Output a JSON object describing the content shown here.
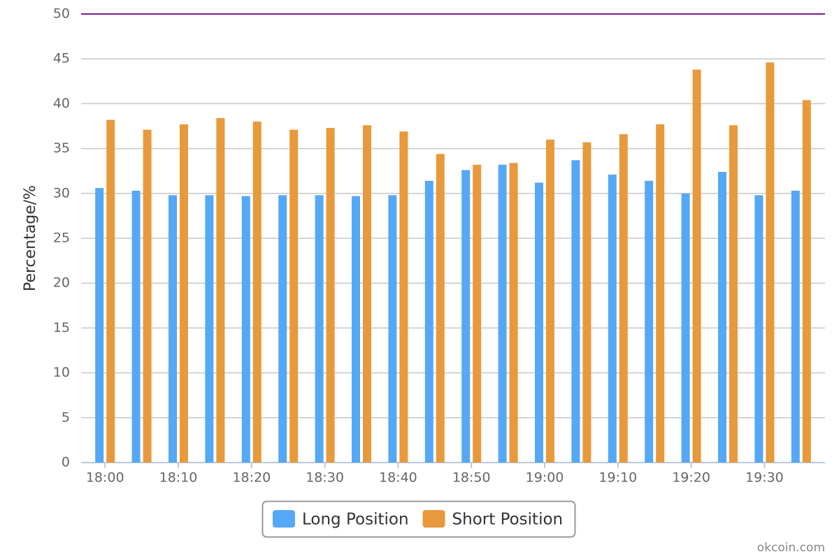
{
  "chart_data": {
    "type": "bar",
    "y_label": "Percentage/%",
    "categories": [
      "18:00",
      null,
      "18:10",
      null,
      "18:20",
      null,
      "18:30",
      null,
      "18:40",
      null,
      "18:50",
      null,
      "19:00",
      null,
      "19:10",
      null,
      "19:20",
      null,
      "19:30",
      null
    ],
    "series": [
      {
        "name": "Long Position",
        "color": "#55a8f5",
        "values": [
          30.6,
          30.3,
          29.8,
          29.8,
          29.7,
          29.8,
          29.8,
          29.7,
          29.8,
          31.4,
          32.6,
          33.2,
          31.2,
          33.7,
          32.1,
          31.4,
          30.0,
          32.4,
          29.8,
          30.3
        ]
      },
      {
        "name": "Short Position",
        "color": "#e8993b",
        "values": [
          38.2,
          37.1,
          37.7,
          38.4,
          38.0,
          37.1,
          37.3,
          37.6,
          36.9,
          34.4,
          33.2,
          33.4,
          36.0,
          35.7,
          36.6,
          37.7,
          43.8,
          37.6,
          44.6,
          40.4
        ]
      }
    ],
    "ylim": [
      0,
      50
    ],
    "yticks": [
      0,
      5,
      10,
      15,
      20,
      25,
      30,
      35,
      40,
      45,
      50
    ],
    "grid": true,
    "legend": "bottom",
    "watermark": "okcoin.com"
  }
}
